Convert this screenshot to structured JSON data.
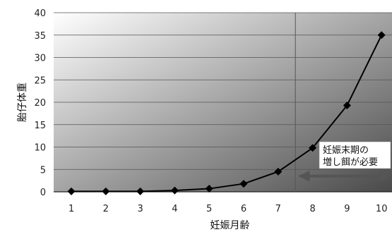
{
  "chart_data": {
    "type": "line",
    "title": "",
    "xlabel": "妊娠月齢",
    "ylabel": "胎仔体重",
    "categories": [
      "1",
      "2",
      "3",
      "4",
      "5",
      "6",
      "7",
      "8",
      "9",
      "10"
    ],
    "values": [
      0.1,
      0.1,
      0.1,
      0.3,
      0.7,
      1.8,
      4.5,
      9.8,
      19.3,
      35
    ],
    "yticks": [
      0,
      5,
      10,
      15,
      20,
      25,
      30,
      35,
      40
    ],
    "ylim": [
      0,
      40
    ],
    "grid": true,
    "line_color": "#000000",
    "marker": "diamond",
    "annotation": {
      "lines": [
        "妊娠末期の",
        "増し餌が必要"
      ],
      "arrow_from_x": 7.5,
      "arrow_to_x": 10.5,
      "arrow_y": 3.5,
      "arrow_color": "#555555"
    },
    "divider_x": 7.5,
    "background_gradient": [
      "#ffffff",
      "#4a4a4a"
    ]
  }
}
